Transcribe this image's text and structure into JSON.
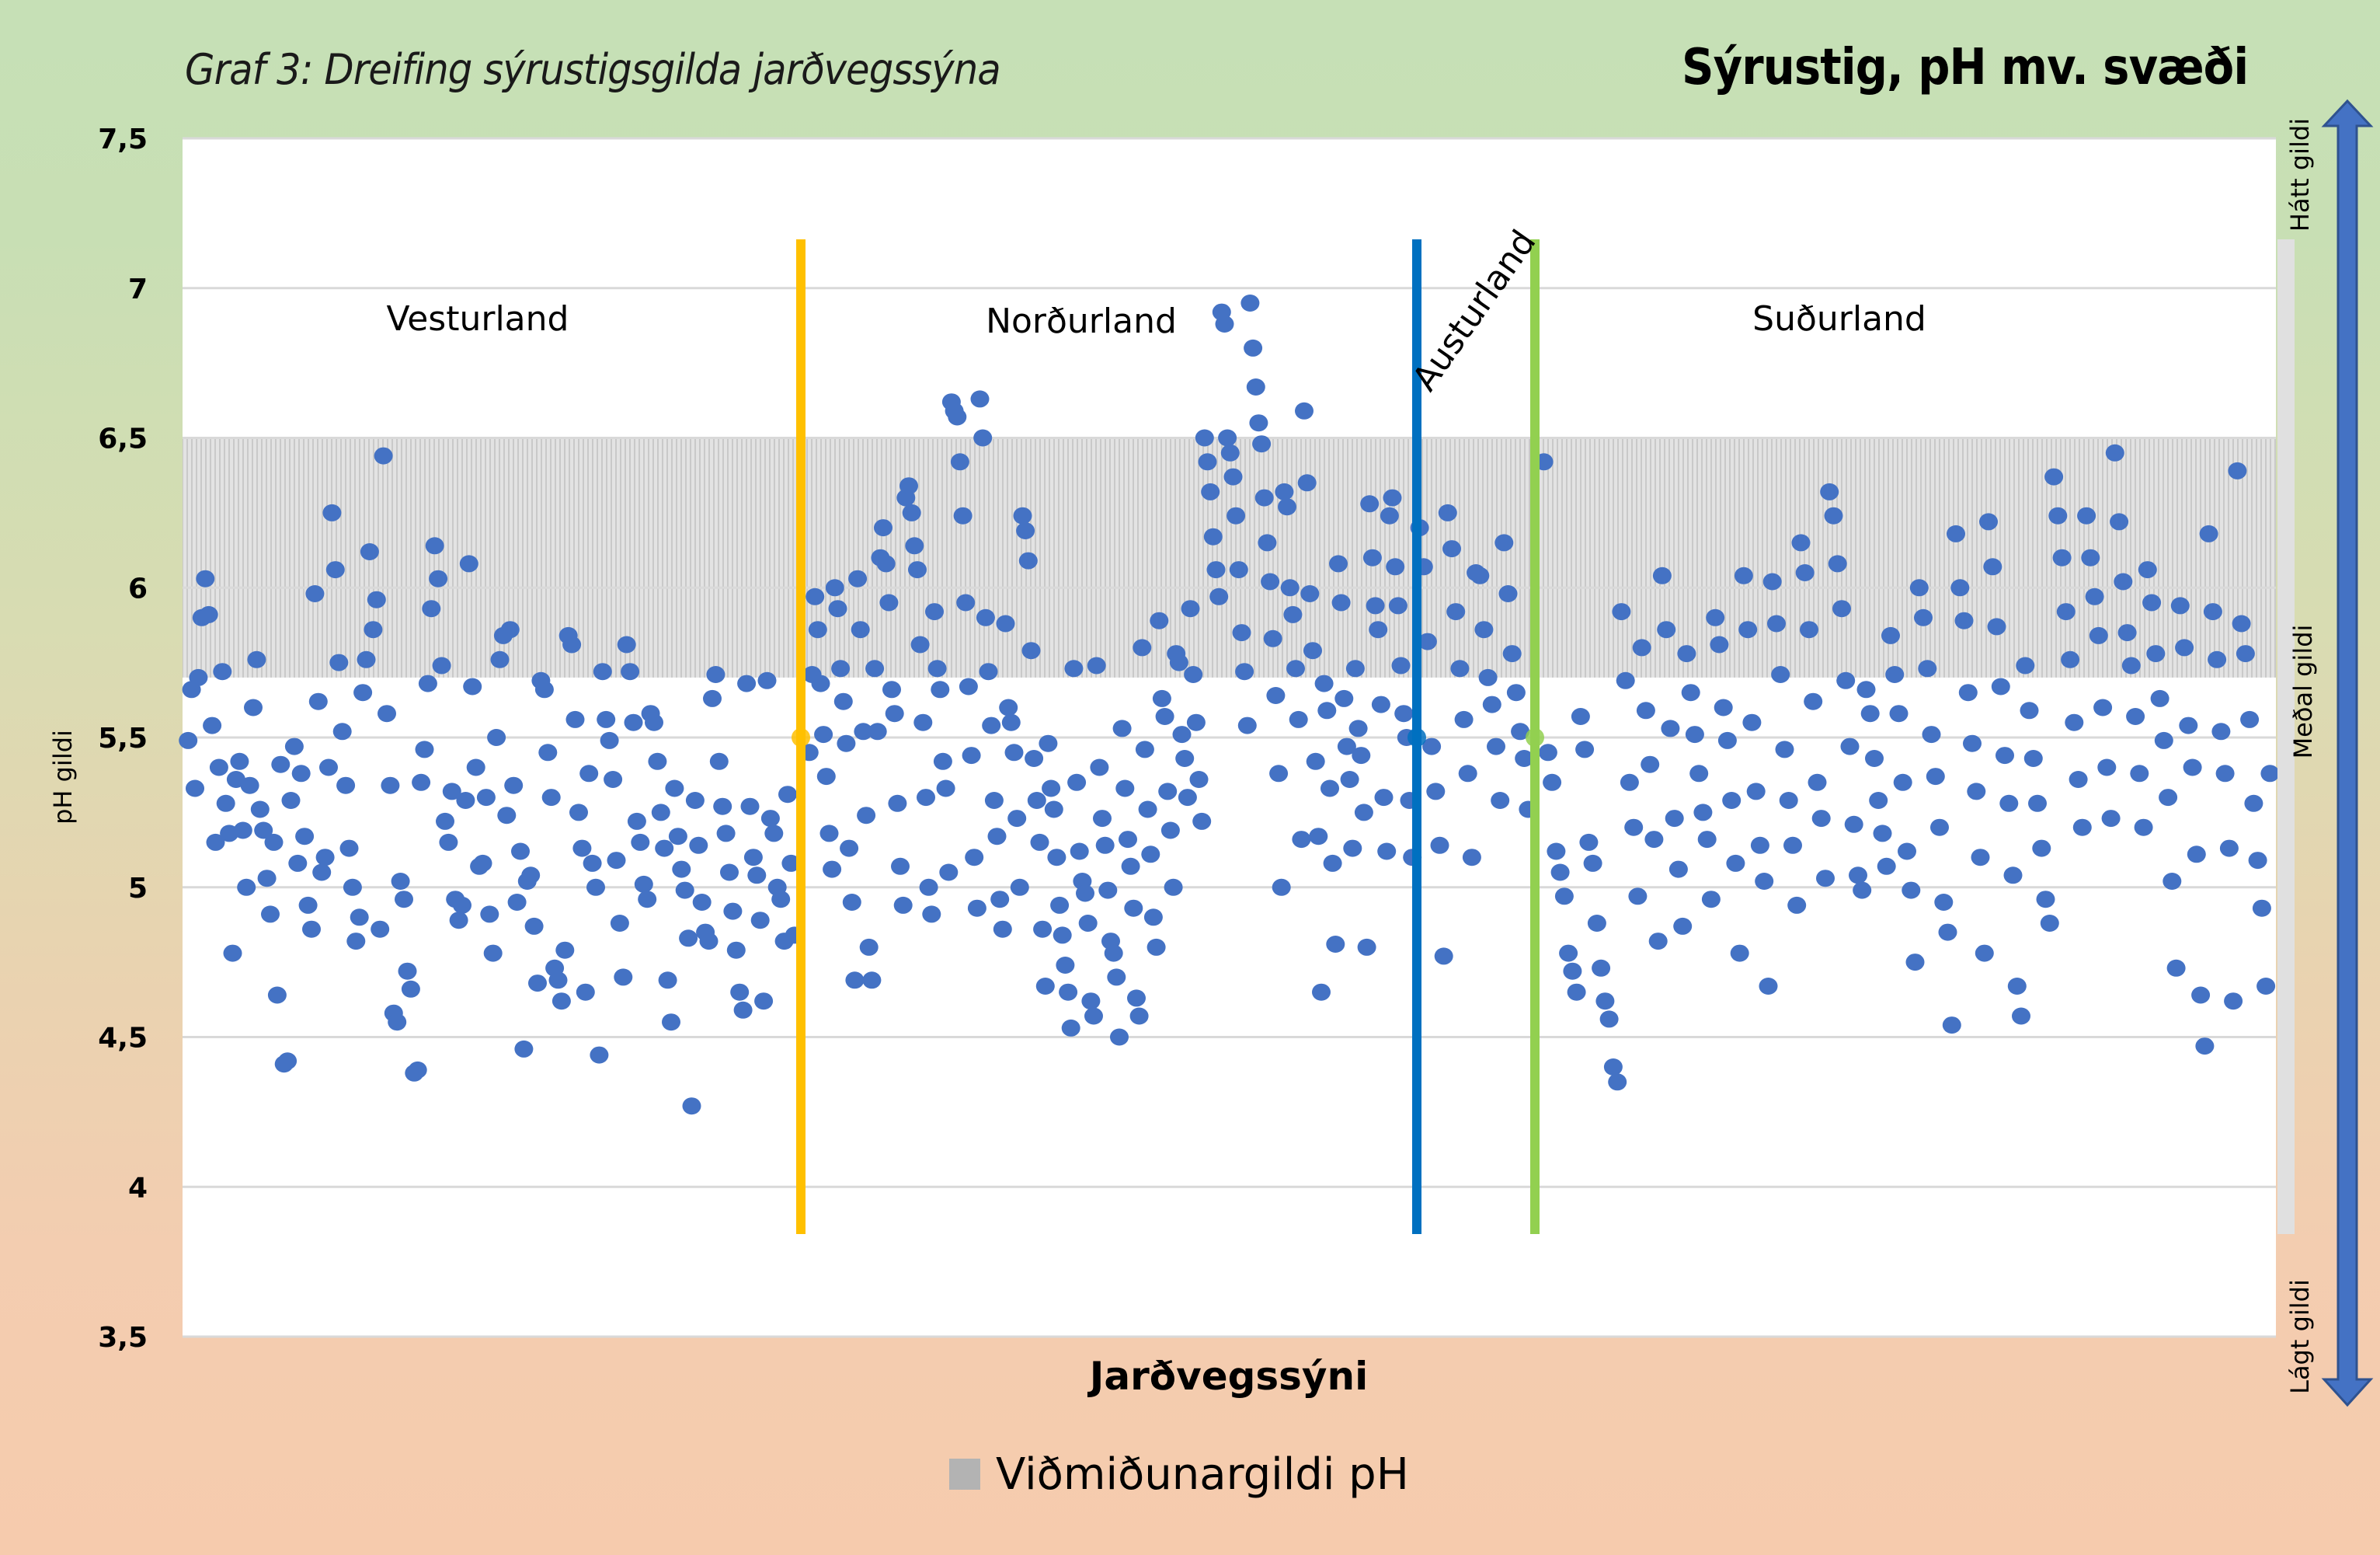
{
  "chart_data": {
    "type": "scatter",
    "title": "Graf 3: Dreifing sýrustigsgilda jarðvegssýna",
    "subtitle": "Sýrustig, pH mv. svæði",
    "xlabel": "Jarðvegssýni",
    "ylabel": "pH gildi",
    "ylim": [
      3.5,
      7.5
    ],
    "yticks": [
      "7,5",
      "7",
      "6,5",
      "6",
      "5,5",
      "5",
      "4,5",
      "4",
      "3,5"
    ],
    "ytick_values": [
      7.5,
      7,
      6.5,
      6,
      5.5,
      5,
      4.5,
      4,
      3.5
    ],
    "grid": true,
    "reference_band": {
      "name": "Viðmiðunargildi pH",
      "low": 5.7,
      "high": 6.5,
      "color": "#bfbfbf"
    },
    "legend": {
      "position": "bottom",
      "entries": [
        {
          "label": "Viðmiðunargildi pH",
          "color": "#b3b3b3"
        }
      ]
    },
    "point_color": "#4472c4",
    "dividers": [
      {
        "name": "Vesturland/Norðurland",
        "color": "#ffc000",
        "y_marker": 5.5
      },
      {
        "name": "Norðurland/Austurland",
        "color": "#0070c0",
        "y_marker": 5.5
      },
      {
        "name": "Austurland/Suðurland",
        "color": "#92d050",
        "y_marker": 5.5
      }
    ],
    "regions": [
      {
        "name": "Vesturland",
        "values": [
          5.49,
          5.66,
          5.33,
          5.7,
          5.9,
          6.03,
          5.91,
          5.54,
          5.15,
          5.4,
          5.72,
          5.28,
          5.18,
          4.78,
          5.36,
          5.42,
          5.19,
          5.0,
          5.34,
          5.6,
          5.76,
          5.26,
          5.19,
          5.03,
          4.91,
          5.15,
          4.64,
          5.41,
          4.41,
          4.42,
          5.29,
          5.47,
          5.08,
          5.38,
          5.17,
          4.94,
          4.86,
          5.98,
          5.62,
          5.05,
          5.1,
          5.4,
          6.25,
          6.06,
          5.75,
          5.52,
          5.34,
          5.13,
          5.0,
          4.82,
          4.9,
          5.65,
          5.76,
          6.12,
          5.86,
          5.96,
          4.86,
          6.44,
          5.58,
          5.34,
          4.58,
          4.55,
          5.02,
          4.96,
          4.72,
          4.66,
          4.38,
          4.39,
          5.35,
          5.46,
          5.68,
          5.93,
          6.14,
          6.03,
          5.74,
          5.22,
          5.15,
          5.32,
          4.96,
          4.89,
          4.94,
          5.29,
          6.08,
          5.67,
          5.4,
          5.07,
          5.08,
          5.3,
          4.91,
          4.78,
          5.5,
          5.76,
          5.84,
          5.24,
          5.86,
          5.34,
          4.95,
          5.12,
          4.46,
          5.02,
          5.04,
          4.87,
          4.68,
          5.69,
          5.66,
          5.45,
          5.3,
          4.73,
          4.69,
          4.62,
          4.79,
          5.84,
          5.81,
          5.56,
          5.25,
          5.13,
          4.65,
          5.38,
          5.08,
          5.0,
          4.44,
          5.72,
          5.56,
          5.49,
          5.36,
          5.09,
          4.88,
          4.7,
          5.81,
          5.72,
          5.55,
          5.22,
          5.15,
          5.01,
          4.96,
          5.58,
          5.55,
          5.42,
          5.25,
          5.13,
          4.69,
          4.55,
          5.33,
          5.17,
          5.06,
          4.99,
          4.83,
          4.27,
          5.29,
          5.14,
          4.95,
          4.85,
          4.82,
          5.63,
          5.71,
          5.42,
          5.27,
          5.18,
          5.05,
          4.92,
          4.79,
          4.65,
          4.59,
          5.68,
          5.27,
          5.1,
          5.04,
          4.89,
          4.62,
          5.69,
          5.23,
          5.18,
          5.0,
          4.96,
          4.82,
          5.31,
          5.08,
          4.84
        ]
      },
      {
        "name": "Norðurland",
        "values": [
          5.45,
          5.71,
          5.97,
          5.86,
          5.68,
          5.51,
          5.37,
          5.18,
          5.06,
          6.0,
          5.93,
          5.73,
          5.62,
          5.48,
          5.13,
          4.95,
          4.69,
          6.03,
          5.86,
          5.52,
          5.24,
          4.8,
          4.69,
          5.73,
          5.52,
          6.1,
          6.2,
          6.08,
          5.95,
          5.66,
          5.58,
          5.28,
          5.07,
          4.94,
          6.3,
          6.34,
          6.25,
          6.14,
          6.06,
          5.81,
          5.55,
          5.3,
          5.0,
          4.91,
          5.92,
          5.73,
          5.66,
          5.42,
          5.33,
          5.05,
          6.62,
          6.59,
          6.57,
          6.42,
          6.24,
          5.95,
          5.67,
          5.44,
          5.1,
          4.93,
          6.63,
          6.5,
          5.9,
          5.72,
          5.54,
          5.29,
          5.17,
          4.96,
          4.86,
          5.88,
          5.6,
          5.55,
          5.45,
          5.23,
          5.0,
          6.24,
          6.19,
          6.09,
          5.79,
          5.43,
          5.29,
          5.15,
          4.86,
          4.67,
          5.48,
          5.33,
          5.26,
          5.1,
          4.94,
          4.84,
          4.74,
          4.65,
          4.53,
          5.73,
          5.35,
          5.12,
          5.02,
          4.98,
          4.88,
          4.62,
          4.57,
          5.74,
          5.4,
          5.23,
          5.14,
          4.99,
          4.82,
          4.78,
          4.7,
          4.5,
          5.53,
          5.33,
          5.16,
          5.07,
          4.93,
          4.63,
          4.57,
          5.8,
          5.46,
          5.26,
          5.11,
          4.9,
          4.8,
          5.89,
          5.63,
          5.57,
          5.32,
          5.19,
          5.0,
          5.78,
          5.75,
          5.51,
          5.43,
          5.3,
          5.93,
          5.71,
          5.55,
          5.36,
          5.22,
          6.5,
          6.42,
          6.32,
          6.17,
          6.06,
          5.97,
          6.92,
          6.88,
          6.5,
          6.45,
          6.37,
          6.24,
          6.06,
          5.85,
          5.72,
          5.54,
          6.95,
          6.8,
          6.67,
          6.55,
          6.48,
          6.3,
          6.15,
          6.02,
          5.83,
          5.64,
          5.38,
          5.0,
          6.32,
          6.27,
          6.0,
          5.91,
          5.73,
          5.56,
          5.16,
          6.59,
          6.35,
          5.98,
          5.79,
          5.42,
          5.17,
          4.65,
          5.68,
          5.59,
          5.33,
          5.08,
          4.81,
          6.08,
          5.95,
          5.63,
          5.47,
          5.36,
          5.13,
          5.73,
          5.53,
          5.44,
          5.25,
          4.8,
          6.28,
          6.1,
          5.94,
          5.86,
          5.61,
          5.3,
          5.12,
          6.24,
          6.3,
          6.07,
          5.94,
          5.74,
          5.58,
          5.5,
          5.29,
          5.1
        ]
      },
      {
        "name": "Austurland",
        "values": [
          6.2,
          6.07,
          5.82,
          5.47,
          5.32,
          5.14,
          4.77,
          6.25,
          6.13,
          5.92,
          5.73,
          5.56,
          5.38,
          5.1,
          6.05,
          6.04,
          5.86,
          5.7,
          5.61,
          5.47,
          5.29,
          6.15,
          5.98,
          5.78,
          5.65,
          5.52,
          5.43,
          5.26
        ]
      },
      {
        "name": "Suðurland",
        "values": [
          6.42,
          5.45,
          5.35,
          5.12,
          5.05,
          4.97,
          4.78,
          4.72,
          4.65,
          5.57,
          5.46,
          5.15,
          5.08,
          4.88,
          4.73,
          4.62,
          4.56,
          4.4,
          4.35,
          5.92,
          5.69,
          5.35,
          5.2,
          4.97,
          5.8,
          5.59,
          5.41,
          5.16,
          4.82,
          6.04,
          5.86,
          5.53,
          5.23,
          5.06,
          4.87,
          5.78,
          5.65,
          5.51,
          5.38,
          5.25,
          5.16,
          4.96,
          5.9,
          5.81,
          5.6,
          5.49,
          5.29,
          5.08,
          4.78,
          6.04,
          5.86,
          5.55,
          5.32,
          5.14,
          5.02,
          4.67,
          6.02,
          5.88,
          5.71,
          5.46,
          5.29,
          5.14,
          4.94,
          6.15,
          6.05,
          5.86,
          5.62,
          5.35,
          5.23,
          5.03,
          6.32,
          6.24,
          6.08,
          5.93,
          5.69,
          5.47,
          5.21,
          5.04,
          4.99,
          5.66,
          5.58,
          5.43,
          5.29,
          5.18,
          5.07,
          5.84,
          5.71,
          5.58,
          5.35,
          5.12,
          4.99,
          4.75,
          6.0,
          5.9,
          5.73,
          5.51,
          5.37,
          5.2,
          4.95,
          4.85,
          4.54,
          6.18,
          6.0,
          5.89,
          5.65,
          5.48,
          5.32,
          5.1,
          4.78,
          6.22,
          6.07,
          5.87,
          5.67,
          5.44,
          5.28,
          5.04,
          4.67,
          4.57,
          5.74,
          5.59,
          5.43,
          5.28,
          5.13,
          4.96,
          4.88,
          6.37,
          6.24,
          6.1,
          5.92,
          5.76,
          5.55,
          5.36,
          5.2,
          6.24,
          6.1,
          5.97,
          5.84,
          5.6,
          5.4,
          5.23,
          6.45,
          6.22,
          6.02,
          5.85,
          5.74,
          5.57,
          5.38,
          5.2,
          6.06,
          5.95,
          5.78,
          5.63,
          5.49,
          5.3,
          5.02,
          4.73,
          5.94,
          5.8,
          5.54,
          5.4,
          5.11,
          4.64,
          4.47,
          6.18,
          5.92,
          5.76,
          5.52,
          5.38,
          5.13,
          4.62,
          6.39,
          5.88,
          5.78,
          5.56,
          5.28,
          5.09,
          4.93,
          4.67,
          5.38
        ]
      }
    ]
  },
  "side_scale": {
    "top_label": "Hátt gildi",
    "middle_label": "Meðal gildi",
    "bottom_label": "Lágt gildi",
    "arrow_color": "#4472c4"
  }
}
